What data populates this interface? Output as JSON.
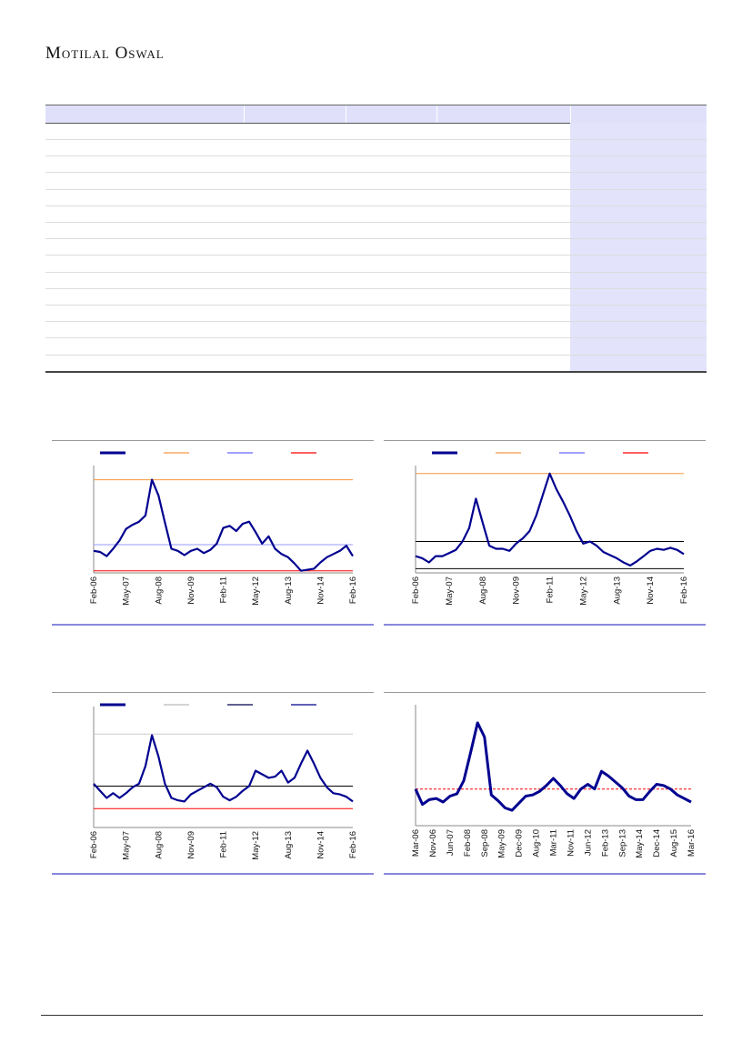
{
  "header": {
    "brand": "Motilal Oswal"
  },
  "colors": {
    "series": "#000090",
    "orange": "#f79640",
    "blue": "#6666ff",
    "red": "#ff0000",
    "black": "#000000",
    "grey": "#bbbbbb"
  },
  "chart_data": [
    {
      "type": "line",
      "ticks": [
        "Feb-06",
        "May-07",
        "Aug-08",
        "Nov-09",
        "Feb-11",
        "May-12",
        "Aug-13",
        "Nov-14",
        "Feb-16"
      ],
      "ylim": [
        0,
        100
      ],
      "refs": [
        {
          "value": 89,
          "color": "#f79640"
        },
        {
          "value": 27,
          "color": "#9999ff"
        },
        {
          "value": 2,
          "color": "#ff0000"
        }
      ],
      "legend": [
        "#000090",
        "#f79640",
        "#6666ff",
        "#ff0000"
      ],
      "values": [
        21,
        20,
        16,
        23,
        31,
        42,
        46,
        49,
        55,
        89,
        74,
        48,
        23,
        21,
        17,
        21,
        23,
        19,
        22,
        28,
        43,
        45,
        40,
        47,
        49,
        39,
        28,
        35,
        23,
        18,
        15,
        9,
        2,
        3,
        4,
        10,
        15,
        18,
        21,
        26,
        16
      ]
    },
    {
      "type": "line",
      "ticks": [
        "Feb-06",
        "May-07",
        "Aug-08",
        "Nov-09",
        "Feb-11",
        "May-12",
        "Aug-13",
        "Nov-14",
        "Feb-16"
      ],
      "ylim": [
        0,
        100
      ],
      "refs": [
        {
          "value": 95,
          "color": "#f79640"
        },
        {
          "value": 30,
          "color": "#000000"
        },
        {
          "value": 4,
          "color": "#000000"
        }
      ],
      "legend": [
        "#000090",
        "#f79640",
        "#6666ff",
        "#ff0000"
      ],
      "values": [
        16,
        14,
        10,
        16,
        16,
        19,
        22,
        30,
        43,
        71,
        48,
        26,
        23,
        23,
        21,
        28,
        33,
        40,
        55,
        75,
        95,
        80,
        68,
        55,
        40,
        28,
        30,
        26,
        20,
        17,
        14,
        10,
        7,
        11,
        16,
        21,
        23,
        22,
        24,
        22,
        18
      ]
    },
    {
      "type": "line",
      "ticks": [
        "Feb-06",
        "May-07",
        "Aug-08",
        "Nov-09",
        "Feb-11",
        "May-12",
        "Aug-13",
        "Nov-14",
        "Feb-16"
      ],
      "ylim": [
        0,
        100
      ],
      "refs": [
        {
          "value": 79,
          "color": "#cccccc"
        },
        {
          "value": 35,
          "color": "#000000"
        },
        {
          "value": 16,
          "color": "#ff0000"
        }
      ],
      "legend": [
        "#000090",
        "#bbbbbb",
        "#000050",
        "#000090"
      ],
      "values": [
        37,
        31,
        25,
        29,
        25,
        29,
        34,
        37,
        52,
        78,
        60,
        37,
        25,
        23,
        22,
        28,
        31,
        34,
        37,
        34,
        26,
        23,
        26,
        31,
        35,
        48,
        45,
        42,
        43,
        48,
        38,
        42,
        54,
        65,
        54,
        42,
        34,
        29,
        28,
        26,
        22
      ]
    },
    {
      "type": "line",
      "ticks": [
        "Mar-06",
        "Nov-06",
        "Jun-07",
        "Feb-08",
        "Sep-08",
        "May-09",
        "Dec-09",
        "Aug-10",
        "Mar-11",
        "Nov-11",
        "Jun-12",
        "Feb-13",
        "Sep-13",
        "May-14",
        "Dec-14",
        "Aug-15",
        "Mar-16"
      ],
      "ylim": [
        0,
        100
      ],
      "refs": [
        {
          "value": 31,
          "color": "#ff0000",
          "dashed": true
        }
      ],
      "legend": [],
      "values": [
        31,
        18,
        22,
        23,
        20,
        25,
        27,
        38,
        62,
        87,
        75,
        26,
        21,
        15,
        13,
        19,
        25,
        26,
        29,
        34,
        40,
        34,
        27,
        23,
        31,
        35,
        31,
        46,
        42,
        37,
        32,
        25,
        22,
        22,
        29,
        35,
        34,
        31,
        26,
        23,
        20
      ]
    }
  ]
}
